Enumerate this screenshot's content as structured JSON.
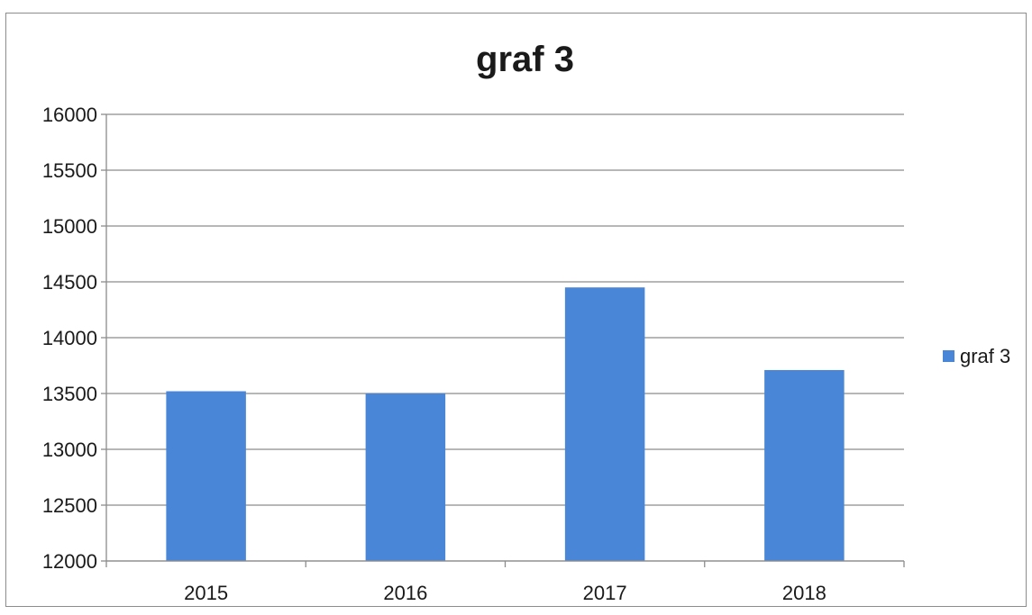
{
  "chart_data": {
    "type": "bar",
    "title": "graf 3",
    "categories": [
      "2015",
      "2016",
      "2017",
      "2018"
    ],
    "series": [
      {
        "name": "graf 3",
        "values": [
          13520,
          13500,
          14450,
          13710
        ]
      }
    ],
    "ylim": [
      12000,
      16000
    ],
    "yticks": [
      12000,
      12500,
      13000,
      13500,
      14000,
      14500,
      15000,
      15500,
      16000
    ],
    "xlabel": "",
    "ylabel": "",
    "grid": true,
    "legend": "right",
    "colors": {
      "bar": "#4a86d8",
      "grid": "#8c8c8c",
      "axis": "#8c8c8c",
      "text": "#1a1a1a"
    }
  }
}
